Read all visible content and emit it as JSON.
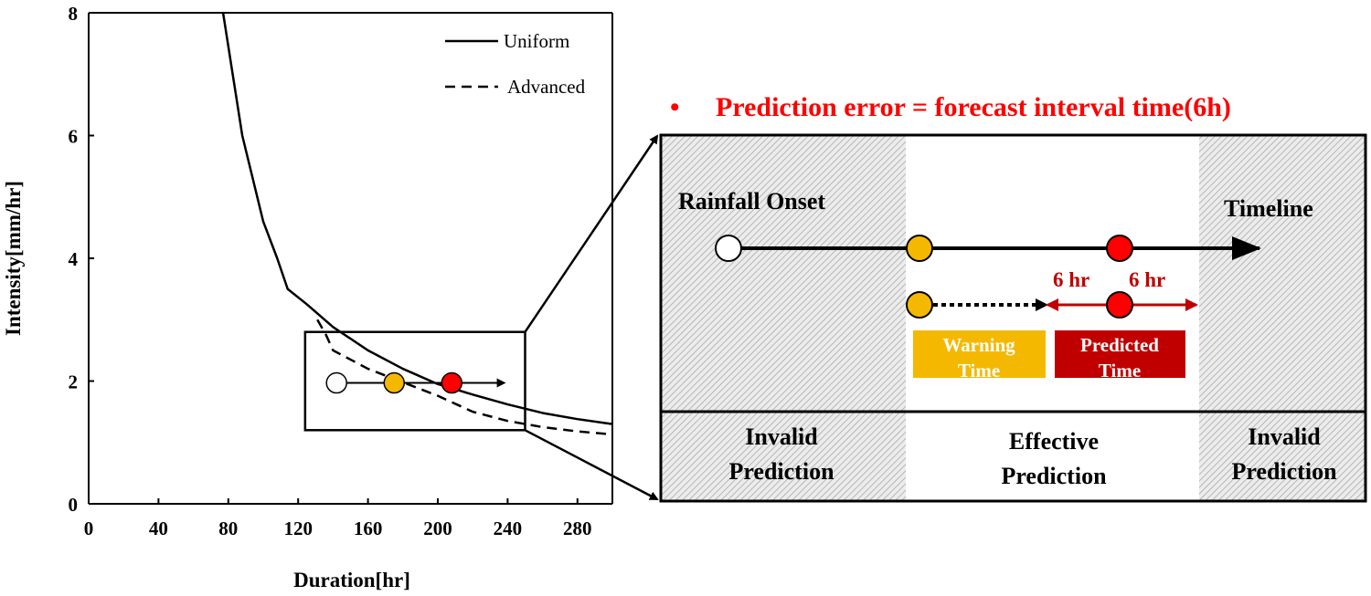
{
  "chart_data": {
    "type": "line",
    "xlabel": "Duration[hr]",
    "ylabel": "Intensity[mm/hr]",
    "xlim": [
      0,
      300
    ],
    "ylim": [
      0,
      8
    ],
    "xticks": [
      "0",
      "40",
      "80",
      "120",
      "160",
      "200",
      "240",
      "280"
    ],
    "yticks": [
      "0",
      "2",
      "4",
      "6",
      "8"
    ],
    "grid": false,
    "legend_position": "top-right",
    "series": [
      {
        "name": "Uniform",
        "style": "solid",
        "x": [
          77,
          88,
          100,
          108,
          114,
          125,
          140,
          160,
          180,
          200,
          220,
          240,
          260,
          280,
          300
        ],
        "y": [
          8,
          6,
          4.6,
          4,
          3.5,
          3.25,
          2.88,
          2.5,
          2.2,
          1.95,
          1.78,
          1.62,
          1.48,
          1.38,
          1.3
        ]
      },
      {
        "name": "Advanced",
        "style": "dashed",
        "x": [
          131,
          136,
          140,
          160,
          180,
          200,
          220,
          240,
          260,
          280,
          300
        ],
        "y": [
          3.0,
          2.75,
          2.5,
          2.2,
          1.98,
          1.76,
          1.5,
          1.35,
          1.25,
          1.18,
          1.13
        ]
      }
    ],
    "markers": [
      {
        "x": 142,
        "y": 1.97,
        "color": "#ffffff"
      },
      {
        "x": 175,
        "y": 1.97,
        "color": "#f5b800"
      },
      {
        "x": 208,
        "y": 1.97,
        "color": "#ff0000"
      }
    ],
    "arrow": {
      "x_start": 142,
      "x_end": 238,
      "y": 1.97
    },
    "zoom_box": {
      "x0": 124,
      "x1": 250,
      "y0": 1.2,
      "y1": 2.8
    }
  },
  "annotation": {
    "title": "Prediction error = forecast interval time(6h)",
    "bullet": "•",
    "rainfall_onset": "Rainfall Onset",
    "timeline": "Timeline",
    "six_hr_left": "6 hr",
    "six_hr_right": "6 hr",
    "warning_line1": "Warning",
    "warning_line2": "Time",
    "predicted_line1": "Predicted",
    "predicted_line2": "Time",
    "invalid_left_line1": "Invalid",
    "invalid_left_line2": "Prediction",
    "effective_line1": "Effective",
    "effective_line2": "Prediction",
    "invalid_right_line1": "Invalid",
    "invalid_right_line2": "Prediction"
  },
  "colors": {
    "accent_red": "#ff0000",
    "dark_red": "#c00000",
    "warning_yellow": "#f5b800",
    "hatch": "#bdbdbd"
  }
}
